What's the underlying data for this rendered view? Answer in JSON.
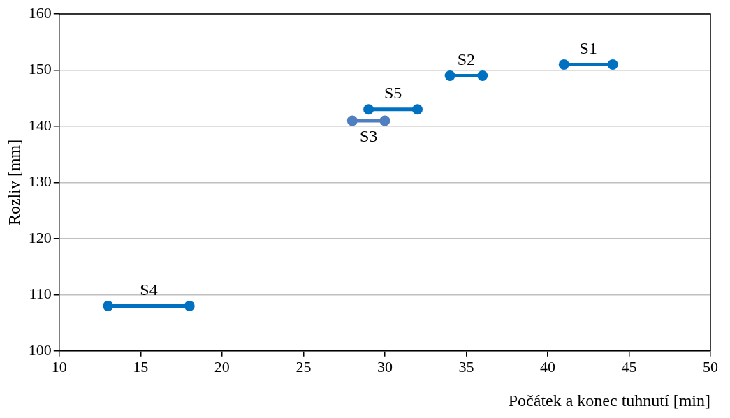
{
  "chart_data": {
    "type": "line",
    "xlabel": "Počátek a konec tuhnutí [min]",
    "ylabel": "Rozliv [mm]",
    "xlim": [
      10,
      50
    ],
    "xticks": [
      10,
      15,
      20,
      25,
      30,
      35,
      40,
      45,
      50
    ],
    "ylim": [
      100,
      160
    ],
    "yticks": [
      100,
      110,
      120,
      130,
      140,
      150,
      160
    ],
    "grid": "y",
    "legend": false,
    "marker": "circle",
    "line_style": "solid",
    "series": [
      {
        "name": "S1",
        "color": "#0070c0",
        "x": [
          41,
          44
        ],
        "values": [
          151,
          151
        ]
      },
      {
        "name": "S2",
        "color": "#0070c0",
        "x": [
          34,
          36
        ],
        "values": [
          149,
          149
        ]
      },
      {
        "name": "S3",
        "color": "#4f7fc0",
        "x": [
          28,
          30
        ],
        "values": [
          141,
          141
        ]
      },
      {
        "name": "S4",
        "color": "#0070c0",
        "x": [
          13,
          18
        ],
        "values": [
          108,
          108
        ]
      },
      {
        "name": "S5",
        "color": "#0070c0",
        "x": [
          29,
          32
        ],
        "values": [
          143,
          143
        ]
      }
    ]
  }
}
